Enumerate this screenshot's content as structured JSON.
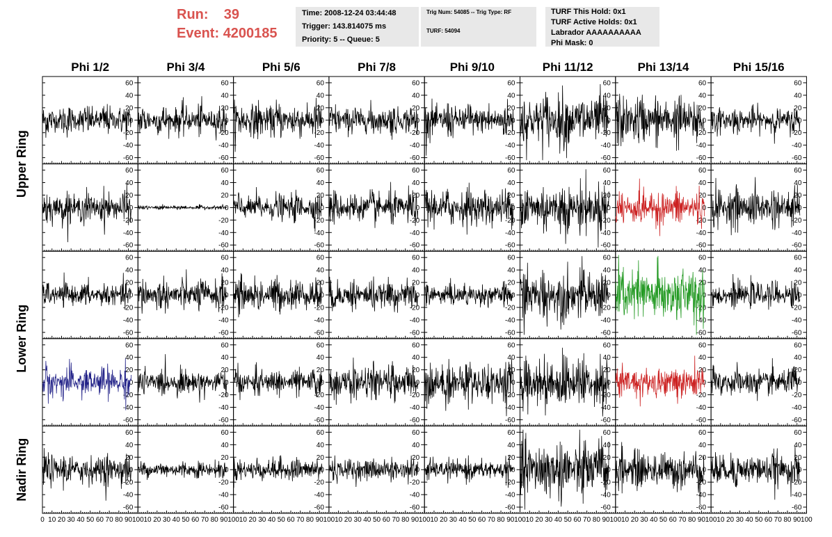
{
  "header": {
    "run_label": "Run:",
    "run_value": "39",
    "event_label": "Event:",
    "event_value": "4200185",
    "time": "Time: 2008-12-24 03:44:48",
    "trigger": "Trigger: 143.814075 ms",
    "priority": "Priority: 5 -- Queue: 5",
    "trig_info": "Trig Num: 54085 -- Trig Type: RF",
    "turf": "TURF: 54094",
    "turf_this_hold": "TURF This Hold: 0x1",
    "turf_active_holds": "TURF Active Holds: 0x1",
    "labrador": "Labrador AAAAAAAAAA",
    "phi_mask": "Phi Mask: 0"
  },
  "chart_data": {
    "type": "line",
    "columns": [
      "Phi 1/2",
      "Phi 3/4",
      "Phi 5/6",
      "Phi 7/8",
      "Phi 9/10",
      "Phi 11/12",
      "Phi 13/14",
      "Phi 15/16"
    ],
    "ring_labels": [
      "Upper Ring",
      "Lower Ring",
      "Nadir Ring"
    ],
    "rows": 5,
    "xlim": [
      0,
      100
    ],
    "ylim": [
      -70,
      70
    ],
    "x_ticks": [
      0,
      10,
      20,
      30,
      40,
      50,
      60,
      70,
      80,
      90,
      100
    ],
    "y_ticks": [
      -60,
      -40,
      -20,
      0,
      20,
      40,
      60
    ],
    "colors": {
      "default": "#000000",
      "red": "#cc2222",
      "green": "#229922",
      "blue": "#222288"
    },
    "panels": [
      [
        {
          "amp": 14,
          "color": "default"
        },
        {
          "amp": 14,
          "color": "default"
        },
        {
          "amp": 17,
          "color": "default"
        },
        {
          "amp": 14,
          "color": "default"
        },
        {
          "amp": 16,
          "color": "default"
        },
        {
          "amp": 26,
          "color": "default"
        },
        {
          "amp": 23,
          "color": "default"
        },
        {
          "amp": 12,
          "color": "default"
        }
      ],
      [
        {
          "amp": 15,
          "color": "default"
        },
        {
          "amp": 2,
          "color": "default"
        },
        {
          "amp": 13,
          "color": "default"
        },
        {
          "amp": 15,
          "color": "default"
        },
        {
          "amp": 18,
          "color": "default"
        },
        {
          "amp": 24,
          "color": "default"
        },
        {
          "amp": 17,
          "color": "red"
        },
        {
          "amp": 18,
          "color": "default"
        }
      ],
      [
        {
          "amp": 11,
          "color": "default"
        },
        {
          "amp": 15,
          "color": "default"
        },
        {
          "amp": 16,
          "color": "default"
        },
        {
          "amp": 14,
          "color": "default"
        },
        {
          "amp": 11,
          "color": "default"
        },
        {
          "amp": 24,
          "color": "default"
        },
        {
          "amp": 28,
          "color": "green"
        },
        {
          "amp": 12,
          "color": "default"
        }
      ],
      [
        {
          "amp": 15,
          "color": "blue"
        },
        {
          "amp": 12,
          "color": "default"
        },
        {
          "amp": 12,
          "color": "default"
        },
        {
          "amp": 16,
          "color": "default"
        },
        {
          "amp": 20,
          "color": "default"
        },
        {
          "amp": 25,
          "color": "default"
        },
        {
          "amp": 16,
          "color": "red"
        },
        {
          "amp": 14,
          "color": "default"
        }
      ],
      [
        {
          "amp": 15,
          "color": "default"
        },
        {
          "amp": 8,
          "color": "default"
        },
        {
          "amp": 11,
          "color": "default"
        },
        {
          "amp": 11,
          "color": "default"
        },
        {
          "amp": 10,
          "color": "default"
        },
        {
          "amp": 30,
          "color": "default"
        },
        {
          "amp": 19,
          "color": "default"
        },
        {
          "amp": 16,
          "color": "default"
        }
      ]
    ]
  }
}
